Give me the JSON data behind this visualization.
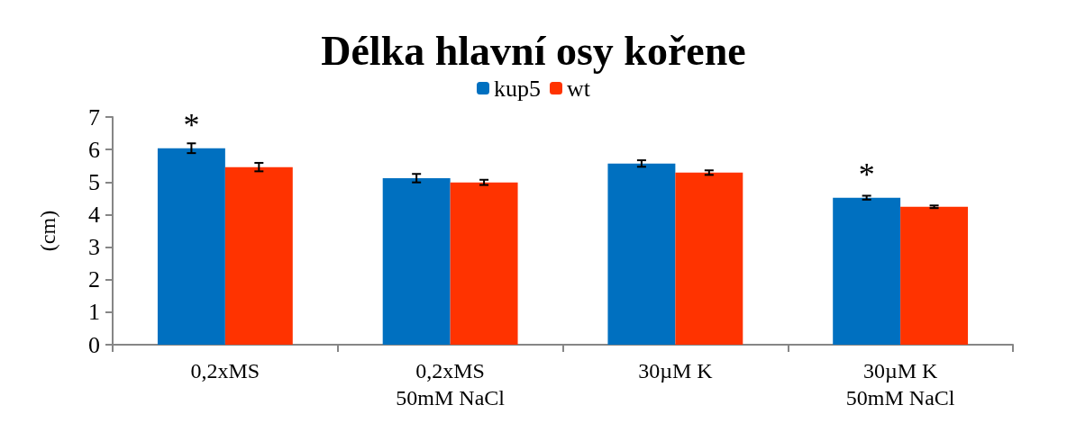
{
  "chart_data": {
    "type": "bar",
    "title": "Délka hlavní osy kořene",
    "ylabel": "(cm)",
    "categories": [
      "0,2xMS",
      "0,2xMS\n50mM NaCl",
      "30µM K",
      "30µM K\n50mM NaCl"
    ],
    "series": [
      {
        "name": "kup5",
        "color": "#0070c0",
        "values": [
          6.04,
          5.12,
          5.57,
          4.52
        ],
        "errors": [
          0.15,
          0.13,
          0.1,
          0.06
        ]
      },
      {
        "name": "wt",
        "color": "#ff3300",
        "values": [
          5.46,
          4.99,
          5.29,
          4.24
        ],
        "errors": [
          0.13,
          0.08,
          0.07,
          0.04
        ]
      }
    ],
    "ylim": [
      0,
      7
    ],
    "yticks": [
      0,
      1,
      2,
      3,
      4,
      5,
      6,
      7
    ],
    "grid": false,
    "legend": "top",
    "annotations": [
      {
        "text": "*",
        "x": "0,2xMS",
        "y": 6.04
      },
      {
        "text": "*",
        "x": "30µM K\n50mM NaCl",
        "y": 4.52
      }
    ]
  }
}
